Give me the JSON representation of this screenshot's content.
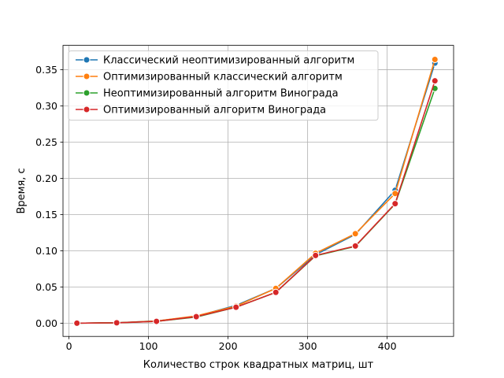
{
  "chart_data": {
    "type": "line",
    "title": "",
    "xlabel": "Количество строк квадратных матриц, шт",
    "ylabel": "Время, с",
    "xlim": [
      -7.5,
      483.5
    ],
    "ylim": [
      -0.0183,
      0.3835
    ],
    "x_ticks": [
      0,
      100,
      200,
      300,
      400
    ],
    "x_tick_labels": [
      "0",
      "100",
      "200",
      "300",
      "400"
    ],
    "y_ticks": [
      0.0,
      0.05,
      0.1,
      0.15,
      0.2,
      0.25,
      0.3,
      0.35
    ],
    "y_tick_labels": [
      "0.00",
      "0.05",
      "0.10",
      "0.15",
      "0.20",
      "0.25",
      "0.30",
      "0.35"
    ],
    "grid": true,
    "legend_position": "upper left",
    "x": [
      10,
      60,
      110,
      160,
      210,
      260,
      310,
      360,
      410,
      460
    ],
    "series": [
      {
        "name": "Классический неоптимизированный алгоритм",
        "color": "#1f77b4",
        "values": [
          0.0,
          0.0005,
          0.003,
          0.0095,
          0.0245,
          0.048,
          0.0945,
          0.1225,
          0.1835,
          0.359
        ]
      },
      {
        "name": "Оптимизированный классический алгоритм",
        "color": "#ff7f0e",
        "values": [
          0.0,
          0.0005,
          0.003,
          0.01,
          0.0235,
          0.048,
          0.0965,
          0.1235,
          0.179,
          0.364
        ]
      },
      {
        "name": "Неоптимизированный алгоритм Винограда",
        "color": "#2ca02c",
        "values": [
          0.0,
          0.0005,
          0.0025,
          0.0085,
          0.022,
          0.0425,
          0.093,
          0.106,
          0.1645,
          0.324
        ]
      },
      {
        "name": "Оптимизированный алгоритм Винограда",
        "color": "#d62728",
        "values": [
          0.0,
          0.0005,
          0.0025,
          0.009,
          0.022,
          0.0425,
          0.0935,
          0.1065,
          0.165,
          0.3345
        ]
      }
    ]
  }
}
